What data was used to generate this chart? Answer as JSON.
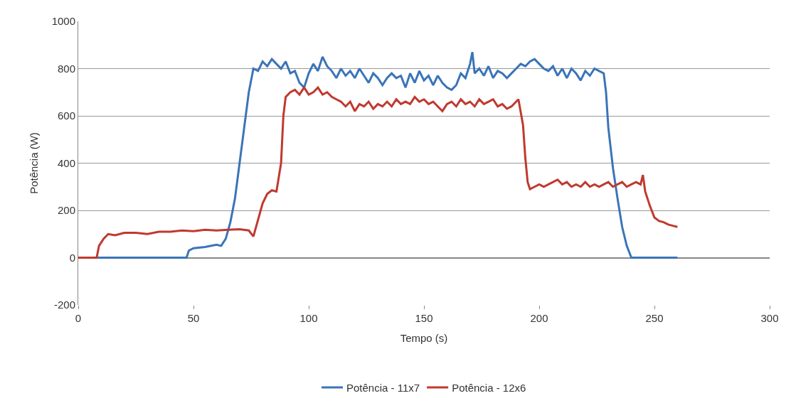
{
  "chart_data": {
    "type": "line",
    "xlabel": "Tempo (s)",
    "ylabel": "Potência (W)",
    "xlim": [
      0,
      300
    ],
    "xticks": [
      0,
      50,
      100,
      150,
      200,
      250,
      300
    ],
    "ylim": [
      -200,
      1000
    ],
    "yticks": [
      -200,
      0,
      200,
      400,
      600,
      800,
      1000
    ],
    "grid": "y",
    "legend": "bottom",
    "marker": "none",
    "line_style": "solid",
    "series": [
      {
        "name": "Potência - 11x7",
        "color": "#3a74b8",
        "x": [
          0,
          47,
          48,
          50,
          55,
          60,
          62,
          64,
          66,
          68,
          70,
          72,
          74,
          76,
          78,
          80,
          82,
          84,
          86,
          88,
          90,
          92,
          94,
          96,
          98,
          100,
          102,
          104,
          106,
          108,
          110,
          112,
          114,
          116,
          118,
          120,
          122,
          124,
          126,
          128,
          130,
          132,
          134,
          136,
          138,
          140,
          142,
          144,
          146,
          148,
          150,
          152,
          154,
          156,
          158,
          160,
          162,
          164,
          166,
          168,
          170,
          171,
          172,
          174,
          176,
          178,
          180,
          182,
          184,
          186,
          188,
          190,
          192,
          194,
          196,
          198,
          200,
          202,
          204,
          206,
          208,
          210,
          212,
          214,
          216,
          218,
          220,
          222,
          224,
          226,
          228,
          229,
          230,
          232,
          234,
          236,
          238,
          240,
          260
        ],
        "values": [
          0,
          0,
          30,
          40,
          45,
          55,
          50,
          80,
          150,
          250,
          400,
          550,
          700,
          800,
          790,
          830,
          810,
          840,
          820,
          800,
          830,
          780,
          790,
          740,
          720,
          780,
          820,
          790,
          850,
          810,
          790,
          760,
          800,
          770,
          790,
          760,
          800,
          770,
          740,
          780,
          760,
          730,
          760,
          780,
          760,
          770,
          720,
          780,
          740,
          790,
          750,
          770,
          730,
          770,
          740,
          720,
          710,
          730,
          780,
          760,
          820,
          870,
          780,
          800,
          770,
          810,
          760,
          790,
          780,
          760,
          780,
          800,
          820,
          810,
          830,
          840,
          820,
          800,
          790,
          810,
          770,
          800,
          760,
          800,
          780,
          750,
          790,
          770,
          800,
          790,
          780,
          700,
          550,
          380,
          250,
          130,
          50,
          0,
          0
        ]
      },
      {
        "name": "Potência - 12x6",
        "color": "#c0392f",
        "x": [
          0,
          8,
          9,
          11,
          13,
          16,
          20,
          25,
          30,
          35,
          40,
          45,
          50,
          55,
          60,
          65,
          70,
          74,
          76,
          78,
          80,
          82,
          84,
          86,
          88,
          89,
          90,
          92,
          94,
          96,
          98,
          100,
          102,
          104,
          106,
          108,
          110,
          112,
          114,
          116,
          118,
          120,
          122,
          124,
          126,
          128,
          130,
          132,
          134,
          136,
          138,
          140,
          142,
          144,
          146,
          148,
          150,
          152,
          154,
          156,
          158,
          160,
          162,
          164,
          166,
          168,
          170,
          172,
          174,
          176,
          178,
          180,
          182,
          184,
          186,
          188,
          190,
          191,
          193,
          194,
          195,
          196,
          198,
          200,
          202,
          204,
          206,
          208,
          210,
          212,
          214,
          216,
          218,
          220,
          222,
          224,
          226,
          228,
          230,
          232,
          234,
          236,
          238,
          240,
          242,
          244,
          245,
          246,
          248,
          250,
          252,
          254,
          256,
          258,
          260
        ],
        "values": [
          0,
          0,
          50,
          80,
          100,
          95,
          105,
          105,
          100,
          110,
          110,
          115,
          112,
          118,
          115,
          118,
          120,
          115,
          90,
          160,
          230,
          270,
          285,
          280,
          400,
          600,
          680,
          700,
          710,
          690,
          720,
          690,
          700,
          720,
          690,
          700,
          680,
          670,
          660,
          640,
          660,
          620,
          650,
          640,
          660,
          630,
          650,
          640,
          660,
          640,
          670,
          650,
          660,
          650,
          680,
          660,
          670,
          650,
          660,
          640,
          620,
          650,
          660,
          640,
          670,
          650,
          660,
          640,
          670,
          650,
          660,
          670,
          640,
          650,
          630,
          640,
          660,
          670,
          560,
          420,
          320,
          290,
          300,
          310,
          300,
          310,
          320,
          330,
          310,
          320,
          300,
          310,
          300,
          320,
          300,
          310,
          300,
          310,
          320,
          300,
          310,
          320,
          300,
          310,
          320,
          310,
          350,
          280,
          220,
          170,
          155,
          150,
          140,
          135,
          130
        ]
      }
    ]
  }
}
